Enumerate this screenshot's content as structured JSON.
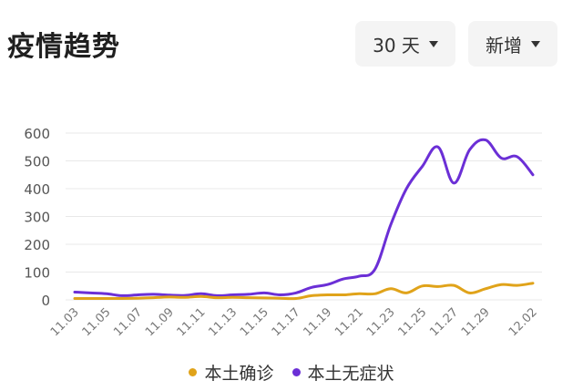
{
  "header": {
    "title": "疫情趋势",
    "range_label": "30 天",
    "metric_label": "新增"
  },
  "colors": {
    "local_confirmed": "#e0a31a",
    "local_asymptomatic": "#6b2fd6",
    "grid": "#e8e8e8",
    "axis_text": "#555555"
  },
  "chart_data": {
    "type": "line",
    "title": "",
    "xlabel": "",
    "ylabel": "",
    "ylim": [
      0,
      600
    ],
    "yticks": [
      0,
      100,
      200,
      300,
      400,
      500,
      600
    ],
    "grid": true,
    "legend_position": "bottom",
    "x": [
      "11.03",
      "11.04",
      "11.05",
      "11.06",
      "11.07",
      "11.08",
      "11.09",
      "11.10",
      "11.11",
      "11.12",
      "11.13",
      "11.14",
      "11.15",
      "11.16",
      "11.17",
      "11.18",
      "11.19",
      "11.20",
      "11.21",
      "11.22",
      "11.23",
      "11.24",
      "11.25",
      "11.26",
      "11.27",
      "11.28",
      "11.29",
      "11.30",
      "12.01",
      "12.02"
    ],
    "xtick_labels": [
      "11.03",
      "11.05",
      "11.07",
      "11.09",
      "11.11",
      "11.13",
      "11.15",
      "11.17",
      "11.19",
      "11.21",
      "11.23",
      "11.25",
      "11.27",
      "11.29",
      "12.02"
    ],
    "series": [
      {
        "name": "本土确诊",
        "color_key": "local_confirmed",
        "values": [
          5,
          5,
          5,
          5,
          6,
          8,
          10,
          9,
          12,
          8,
          9,
          8,
          7,
          6,
          5,
          15,
          18,
          18,
          22,
          22,
          40,
          25,
          50,
          48,
          52,
          25,
          40,
          55,
          52,
          60
        ]
      },
      {
        "name": "本土无症状",
        "color_key": "local_asymptomatic",
        "values": [
          28,
          25,
          22,
          15,
          18,
          20,
          17,
          16,
          22,
          15,
          18,
          20,
          25,
          18,
          25,
          45,
          55,
          75,
          85,
          110,
          270,
          400,
          480,
          550,
          420,
          540,
          575,
          510,
          515,
          450
        ]
      }
    ]
  }
}
